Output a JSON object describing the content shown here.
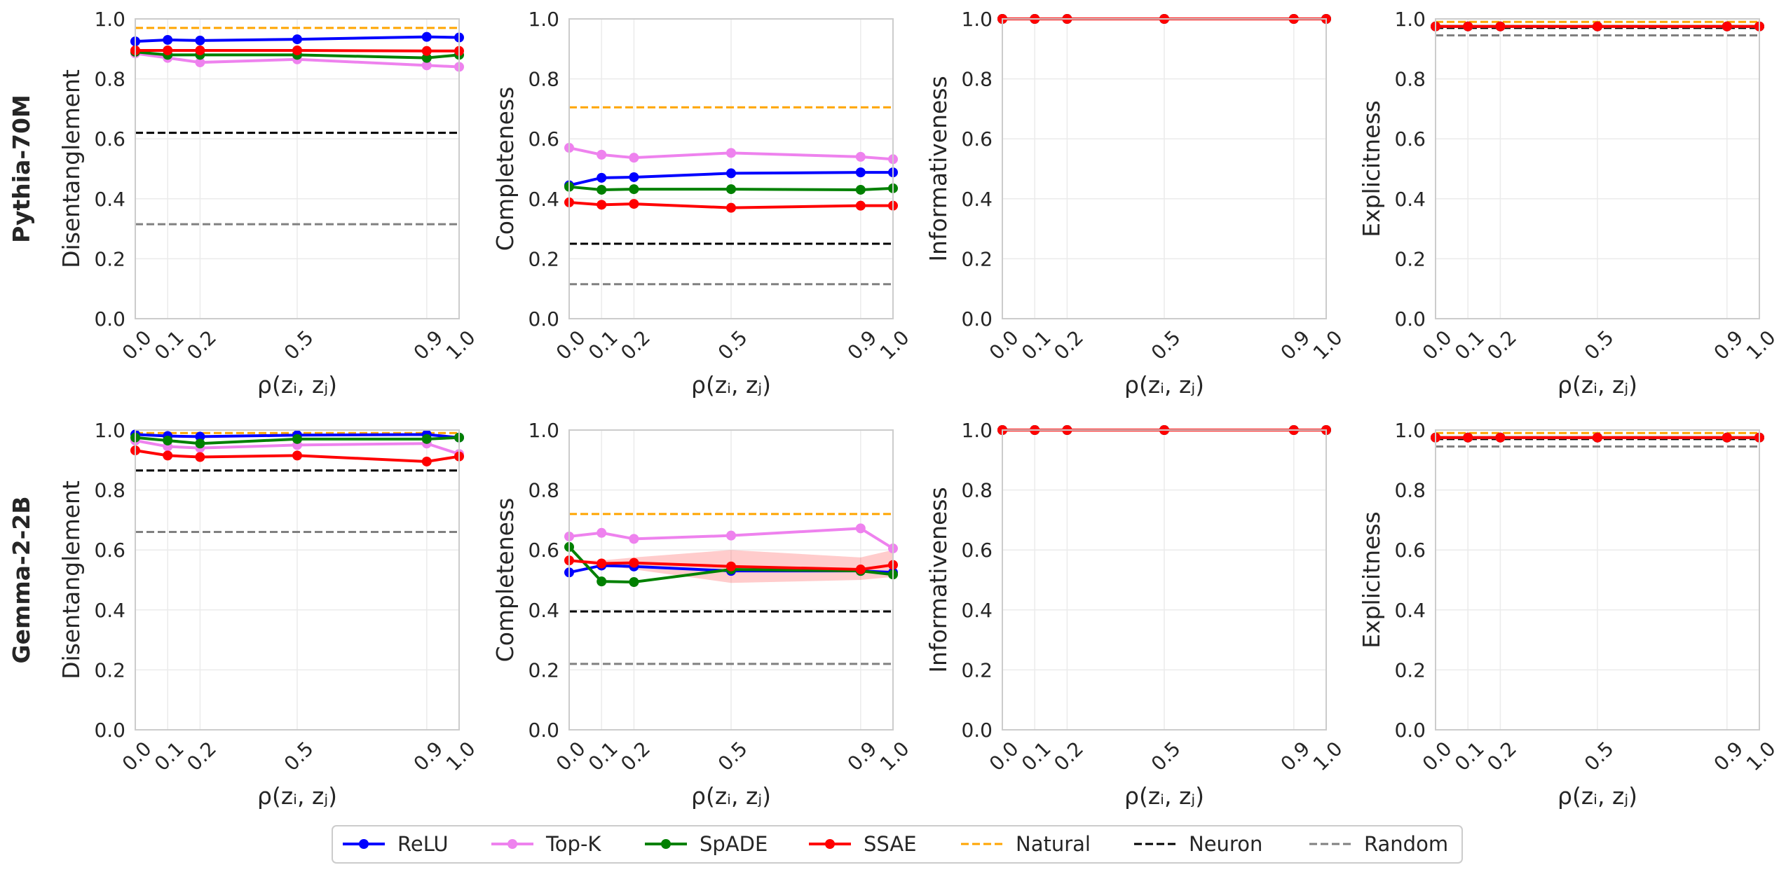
{
  "chart_data": {
    "type": "line",
    "x": [
      0.0,
      0.1,
      0.2,
      0.5,
      0.9,
      1.0
    ],
    "x_tick_labels": [
      "0.0",
      "0.1",
      "0.2",
      "0.5",
      "0.9",
      "1.0"
    ],
    "y_tick_labels": [
      "0.0",
      "0.2",
      "0.4",
      "0.6",
      "0.8",
      "1.0"
    ],
    "xlim": [
      0,
      1
    ],
    "ylim": [
      0,
      1
    ],
    "xlabel": "ρ(zᵢ, zⱼ)",
    "grid": true,
    "legend_position": "bottom-center",
    "legend": [
      {
        "label": "ReLU",
        "color": "#0000ff",
        "style": "line-marker"
      },
      {
        "label": "Top-K",
        "color": "#ee82ee",
        "style": "line-marker"
      },
      {
        "label": "SpADE",
        "color": "#008000",
        "style": "line-marker"
      },
      {
        "label": "SSAE",
        "color": "#ff0000",
        "style": "line-marker"
      },
      {
        "label": "Natural",
        "color": "#ffa500",
        "style": "dashed"
      },
      {
        "label": "Neuron",
        "color": "#000000",
        "style": "dashed"
      },
      {
        "label": "Random",
        "color": "#808080",
        "style": "dashed"
      }
    ],
    "rows": [
      {
        "row_label": "Pythia-70M",
        "panels": [
          {
            "ylabel": "Disentanglement",
            "series": [
              {
                "name": "ReLU",
                "values": [
                  0.925,
                  0.93,
                  0.928,
                  0.932,
                  0.94,
                  0.938
                ]
              },
              {
                "name": "Top-K",
                "values": [
                  0.885,
                  0.87,
                  0.855,
                  0.865,
                  0.845,
                  0.84
                ]
              },
              {
                "name": "SpADE",
                "values": [
                  0.89,
                  0.88,
                  0.88,
                  0.88,
                  0.87,
                  0.88
                ]
              },
              {
                "name": "SSAE",
                "values": [
                  0.895,
                  0.895,
                  0.895,
                  0.895,
                  0.893,
                  0.893
                ]
              }
            ],
            "baselines": [
              {
                "name": "Natural",
                "value": 0.97
              },
              {
                "name": "Neuron",
                "value": 0.62
              },
              {
                "name": "Random",
                "value": 0.315
              }
            ]
          },
          {
            "ylabel": "Completeness",
            "series": [
              {
                "name": "ReLU",
                "values": [
                  0.445,
                  0.47,
                  0.472,
                  0.485,
                  0.488,
                  0.488
                ]
              },
              {
                "name": "Top-K",
                "values": [
                  0.57,
                  0.547,
                  0.537,
                  0.553,
                  0.54,
                  0.532
                ]
              },
              {
                "name": "SpADE",
                "values": [
                  0.44,
                  0.43,
                  0.432,
                  0.432,
                  0.43,
                  0.435
                ]
              },
              {
                "name": "SSAE",
                "values": [
                  0.388,
                  0.38,
                  0.383,
                  0.37,
                  0.377,
                  0.377
                ]
              }
            ],
            "baselines": [
              {
                "name": "Natural",
                "value": 0.705
              },
              {
                "name": "Neuron",
                "value": 0.25
              },
              {
                "name": "Random",
                "value": 0.115
              }
            ]
          },
          {
            "ylabel": "Informativeness",
            "series": [
              {
                "name": "ReLU",
                "values": [
                  1.0,
                  1.0,
                  1.0,
                  1.0,
                  1.0,
                  1.0
                ]
              },
              {
                "name": "Top-K",
                "values": [
                  1.0,
                  1.0,
                  1.0,
                  1.0,
                  1.0,
                  1.0
                ]
              },
              {
                "name": "SpADE",
                "values": [
                  1.0,
                  1.0,
                  1.0,
                  1.0,
                  1.0,
                  1.0
                ]
              },
              {
                "name": "SSAE",
                "values": [
                  1.0,
                  1.0,
                  1.0,
                  1.0,
                  1.0,
                  1.0
                ]
              }
            ],
            "baselines": [
              {
                "name": "Natural",
                "value": 1.0
              },
              {
                "name": "Neuron",
                "value": 1.0
              },
              {
                "name": "Random",
                "value": 1.0
              }
            ]
          },
          {
            "ylabel": "Explicitness",
            "series": [
              {
                "name": "ReLU",
                "values": [
                  0.975,
                  0.975,
                  0.975,
                  0.975,
                  0.975,
                  0.975
                ]
              },
              {
                "name": "Top-K",
                "values": [
                  0.975,
                  0.975,
                  0.975,
                  0.975,
                  0.975,
                  0.975
                ]
              },
              {
                "name": "SpADE",
                "values": [
                  0.975,
                  0.975,
                  0.975,
                  0.975,
                  0.975,
                  0.975
                ]
              },
              {
                "name": "SSAE",
                "values": [
                  0.975,
                  0.975,
                  0.975,
                  0.975,
                  0.975,
                  0.975
                ]
              }
            ],
            "baselines": [
              {
                "name": "Natural",
                "value": 0.99
              },
              {
                "name": "Neuron",
                "value": 0.97
              },
              {
                "name": "Random",
                "value": 0.945
              }
            ]
          }
        ]
      },
      {
        "row_label": "Gemma-2-2B",
        "panels": [
          {
            "ylabel": "Disentanglement",
            "series": [
              {
                "name": "ReLU",
                "values": [
                  0.985,
                  0.98,
                  0.978,
                  0.983,
                  0.985,
                  0.975
                ]
              },
              {
                "name": "Top-K",
                "values": [
                  0.965,
                  0.945,
                  0.94,
                  0.95,
                  0.955,
                  0.92
                ]
              },
              {
                "name": "SpADE",
                "values": [
                  0.975,
                  0.965,
                  0.955,
                  0.97,
                  0.97,
                  0.975
                ]
              },
              {
                "name": "SSAE",
                "values": [
                  0.932,
                  0.915,
                  0.91,
                  0.915,
                  0.895,
                  0.912
                ]
              }
            ],
            "baselines": [
              {
                "name": "Natural",
                "value": 0.99
              },
              {
                "name": "Neuron",
                "value": 0.865
              },
              {
                "name": "Random",
                "value": 0.66
              }
            ]
          },
          {
            "ylabel": "Completeness",
            "series": [
              {
                "name": "ReLU",
                "values": [
                  0.525,
                  0.548,
                  0.545,
                  0.53,
                  0.53,
                  0.525
                ]
              },
              {
                "name": "Top-K",
                "values": [
                  0.645,
                  0.657,
                  0.637,
                  0.648,
                  0.672,
                  0.605
                ]
              },
              {
                "name": "SpADE",
                "values": [
                  0.61,
                  0.495,
                  0.493,
                  0.535,
                  0.53,
                  0.518
                ]
              },
              {
                "name": "SSAE",
                "values": [
                  0.565,
                  0.555,
                  0.557,
                  0.545,
                  0.535,
                  0.55
                ]
              }
            ],
            "band": {
              "series": "SSAE",
              "lower": [
                0.565,
                0.55,
                0.535,
                0.49,
                0.5,
                0.51
              ],
              "upper": [
                0.565,
                0.565,
                0.575,
                0.6,
                0.575,
                0.6
              ]
            },
            "baselines": [
              {
                "name": "Natural",
                "value": 0.72
              },
              {
                "name": "Neuron",
                "value": 0.395
              },
              {
                "name": "Random",
                "value": 0.22
              }
            ]
          },
          {
            "ylabel": "Informativeness",
            "series": [
              {
                "name": "ReLU",
                "values": [
                  1.0,
                  1.0,
                  1.0,
                  1.0,
                  1.0,
                  1.0
                ]
              },
              {
                "name": "Top-K",
                "values": [
                  1.0,
                  1.0,
                  1.0,
                  1.0,
                  1.0,
                  1.0
                ]
              },
              {
                "name": "SpADE",
                "values": [
                  1.0,
                  1.0,
                  1.0,
                  1.0,
                  1.0,
                  1.0
                ]
              },
              {
                "name": "SSAE",
                "values": [
                  1.0,
                  1.0,
                  1.0,
                  1.0,
                  1.0,
                  1.0
                ]
              }
            ],
            "baselines": [
              {
                "name": "Natural",
                "value": 1.0
              },
              {
                "name": "Neuron",
                "value": 1.0
              },
              {
                "name": "Random",
                "value": 1.0
              }
            ]
          },
          {
            "ylabel": "Explicitness",
            "series": [
              {
                "name": "ReLU",
                "values": [
                  0.975,
                  0.975,
                  0.975,
                  0.975,
                  0.975,
                  0.975
                ]
              },
              {
                "name": "Top-K",
                "values": [
                  0.975,
                  0.975,
                  0.975,
                  0.975,
                  0.975,
                  0.975
                ]
              },
              {
                "name": "SpADE",
                "values": [
                  0.975,
                  0.975,
                  0.975,
                  0.975,
                  0.975,
                  0.975
                ]
              },
              {
                "name": "SSAE",
                "values": [
                  0.975,
                  0.975,
                  0.975,
                  0.975,
                  0.975,
                  0.975
                ]
              }
            ],
            "baselines": [
              {
                "name": "Natural",
                "value": 0.99
              },
              {
                "name": "Neuron",
                "value": 0.97
              },
              {
                "name": "Random",
                "value": 0.945
              }
            ]
          }
        ]
      }
    ]
  }
}
